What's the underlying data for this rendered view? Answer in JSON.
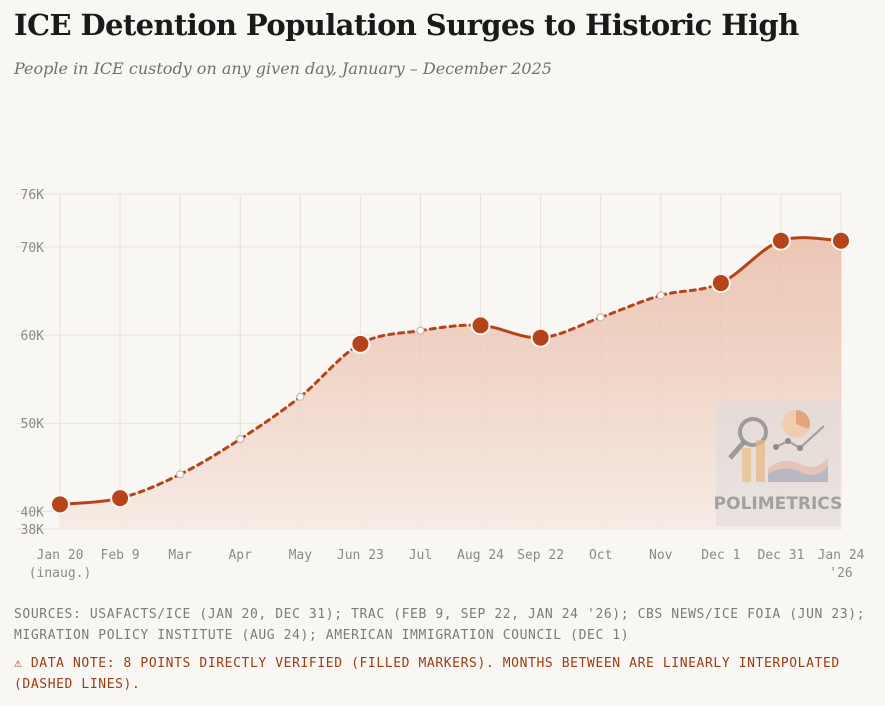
{
  "title": "ICE Detention Population Surges to Historic High",
  "subtitle": "People in ICE custody on any given day, January – December 2025",
  "chart_data": {
    "type": "line",
    "ylim": [
      38000,
      76000
    ],
    "y_ticks": [
      {
        "value": 38000,
        "label": "38K"
      },
      {
        "value": 40000,
        "label": "40K"
      },
      {
        "value": 50000,
        "label": "50K"
      },
      {
        "value": 60000,
        "label": "60K"
      },
      {
        "value": 70000,
        "label": "70K"
      },
      {
        "value": 76000,
        "label": "76K"
      }
    ],
    "points": [
      {
        "label": "Jan 20",
        "sublabel": "(inaug.)",
        "value": 40800,
        "verified": true
      },
      {
        "label": "Feb 9",
        "sublabel": "",
        "value": 41500,
        "verified": true
      },
      {
        "label": "Mar",
        "sublabel": "",
        "value": 44200,
        "verified": false
      },
      {
        "label": "Apr",
        "sublabel": "",
        "value": 48200,
        "verified": false
      },
      {
        "label": "May",
        "sublabel": "",
        "value": 53000,
        "verified": false
      },
      {
        "label": "Jun 23",
        "sublabel": "",
        "value": 59000,
        "verified": true
      },
      {
        "label": "Jul",
        "sublabel": "",
        "value": 60500,
        "verified": false
      },
      {
        "label": "Aug 24",
        "sublabel": "",
        "value": 61100,
        "verified": true
      },
      {
        "label": "Sep 22",
        "sublabel": "",
        "value": 59700,
        "verified": true
      },
      {
        "label": "Oct",
        "sublabel": "",
        "value": 62000,
        "verified": false
      },
      {
        "label": "Nov",
        "sublabel": "",
        "value": 64500,
        "verified": false
      },
      {
        "label": "Dec 1",
        "sublabel": "",
        "value": 65900,
        "verified": true
      },
      {
        "label": "Dec 31",
        "sublabel": "",
        "value": 70700,
        "verified": true
      },
      {
        "label": "Jan 24",
        "sublabel": "'26",
        "value": 70700,
        "verified": true
      }
    ],
    "colors": {
      "line": "#b5441b",
      "fill_top": "#e8b6a0",
      "fill_bottom": "#f6ebe4",
      "grid": "#e8e1d6",
      "axis_text": "#8a8a8a"
    }
  },
  "watermark": "POLIMETRICS",
  "sources": "Sources: USAFacts/ICE (Jan 20, Dec 31); TRAC (Feb 9, Sep 22, Jan 24 '26); CBS News/ICE FOIA (Jun 23); Migration Policy Institute (Aug 24); American Immigration Council (Dec 1)",
  "note": "⚠ Data note: 8 points directly verified (filled markers). Months between are linearly interpolated (dashed lines)."
}
